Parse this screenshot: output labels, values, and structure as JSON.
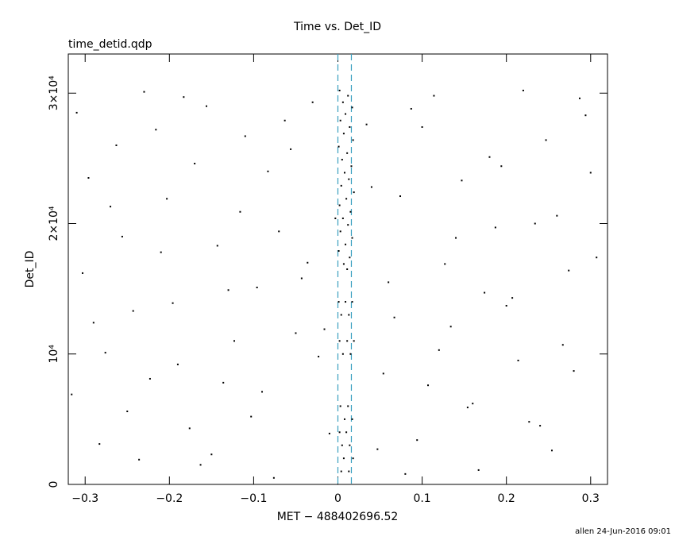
{
  "chart_data": {
    "type": "scatter",
    "title": "Time vs. Det_ID",
    "subtitle": "time_detid.qdp",
    "xlabel": "MET − 488402696.52",
    "ylabel": "Det_ID",
    "footer": "allen 24-Jun-2016 09:01",
    "xlim": [
      -0.32,
      0.32
    ],
    "ylim": [
      0,
      33000
    ],
    "xticks": [
      {
        "value": -0.3,
        "label": "−0.3"
      },
      {
        "value": -0.2,
        "label": "−0.2"
      },
      {
        "value": -0.1,
        "label": "−0.1"
      },
      0,
      0.1,
      0.2,
      0.3
    ],
    "yticks": [
      0,
      {
        "value": 10000,
        "label": "10⁴"
      },
      {
        "value": 20000,
        "label": "2×10⁴"
      },
      {
        "value": 30000,
        "label": "3×10⁴"
      }
    ],
    "color": "#000000",
    "vlines": [
      0,
      0.016
    ],
    "vline_color": "#3a9fc0",
    "x": [
      -0.31,
      -0.29,
      -0.27,
      -0.25,
      -0.23,
      -0.21,
      -0.19,
      -0.17,
      -0.15,
      -0.13,
      -0.11,
      -0.09,
      -0.07,
      -0.05,
      -0.03,
      -0.01,
      0.04,
      0.06,
      0.08,
      0.1,
      0.12,
      0.14,
      0.16,
      0.18,
      0.2,
      0.22,
      0.24,
      0.26,
      0.28,
      0.3,
      -0.303,
      -0.283,
      -0.263,
      -0.243,
      -0.223,
      -0.203,
      -0.183,
      -0.163,
      -0.143,
      -0.123,
      -0.103,
      -0.083,
      -0.063,
      -0.043,
      -0.023,
      -0.003,
      0.047,
      0.067,
      0.087,
      0.107,
      0.127,
      0.147,
      0.167,
      0.187,
      0.207,
      0.227,
      0.247,
      0.267,
      0.287,
      0.307,
      -0.316,
      -0.296,
      -0.276,
      -0.256,
      -0.236,
      -0.216,
      -0.196,
      -0.176,
      -0.156,
      -0.136,
      -0.116,
      -0.096,
      -0.076,
      -0.056,
      -0.036,
      -0.016,
      0.034,
      0.054,
      0.074,
      0.094,
      0.114,
      0.134,
      0.154,
      0.174,
      0.194,
      0.214,
      0.234,
      0.254,
      0.274,
      0.294,
      0.002,
      0.012,
      0.006,
      0.017,
      0.009,
      0.003,
      0.014,
      0.007,
      0.018,
      0.001,
      0.011,
      0.005,
      0.016,
      0.008,
      0.013,
      0.004,
      0.019,
      0.01,
      0.002,
      0.015,
      0.006,
      0.012,
      0.003,
      0.017,
      0.009,
      0.001,
      0.014,
      0.007,
      0.011,
      0.001,
      0.009,
      0.017,
      0.004,
      0.013,
      0.002,
      0.011,
      0.019,
      0.006,
      0.015,
      0.003,
      0.012,
      0.008,
      0.017,
      0.002,
      0.01,
      0.005,
      0.014,
      0.007,
      0.018,
      0.004,
      0.013
    ],
    "values": [
      28500,
      12400,
      21300,
      5600,
      30100,
      17800,
      9200,
      24600,
      2300,
      14900,
      26700,
      7100,
      19400,
      11600,
      29300,
      3900,
      22800,
      15500,
      800,
      27400,
      10300,
      18900,
      6200,
      25100,
      13700,
      30200,
      4500,
      20600,
      8700,
      23900,
      16200,
      3100,
      26000,
      13300,
      8100,
      21900,
      29700,
      1500,
      18300,
      11000,
      5200,
      24000,
      27900,
      15800,
      9800,
      20400,
      2700,
      12800,
      28800,
      7600,
      16900,
      23300,
      1100,
      19700,
      14300,
      4800,
      26400,
      10700,
      29600,
      17400,
      6900,
      23500,
      10100,
      19000,
      1900,
      27200,
      13900,
      4300,
      29000,
      7800,
      20900,
      15100,
      500,
      25700,
      17000,
      11900,
      27600,
      8500,
      22100,
      3400,
      29800,
      12100,
      5900,
      14700,
      24400,
      9500,
      20000,
      2600,
      16400,
      28300,
      30200,
      29800,
      29300,
      28900,
      28400,
      27900,
      27400,
      26900,
      26400,
      25900,
      25400,
      24900,
      24400,
      23900,
      23400,
      22900,
      22400,
      21900,
      21400,
      20900,
      20400,
      19900,
      19400,
      18900,
      18400,
      17900,
      17400,
      16900,
      16500,
      14000,
      14000,
      14000,
      13000,
      13000,
      11000,
      11000,
      11000,
      10000,
      10000,
      6000,
      6000,
      5000,
      5000,
      4000,
      4000,
      3000,
      3000,
      2000,
      2000,
      1000,
      1000
    ]
  }
}
